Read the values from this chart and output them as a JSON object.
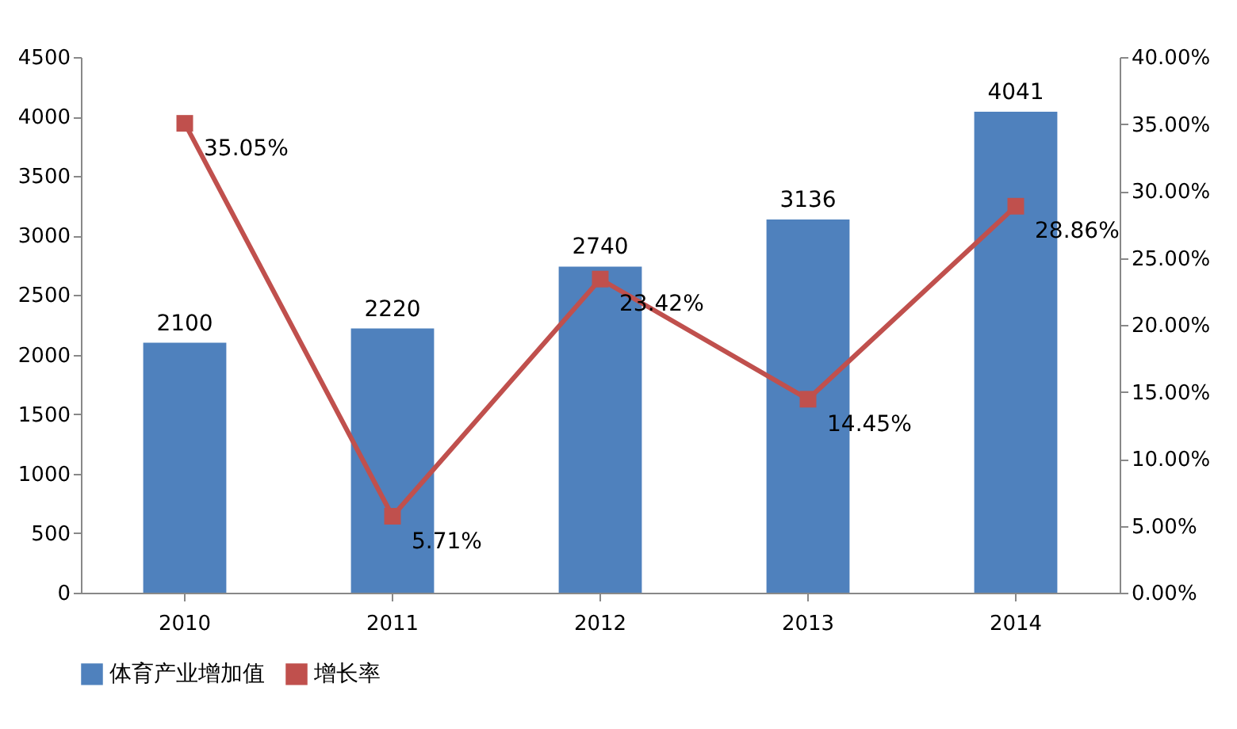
{
  "chart_data": {
    "type": "bar",
    "categories": [
      "2010",
      "2011",
      "2012",
      "2013",
      "2014"
    ],
    "series": [
      {
        "name": "体育产业增加值",
        "color": "#4f81bd",
        "values": [
          2100,
          2220,
          2740,
          3136,
          4041
        ],
        "value_labels": [
          "2100",
          "2220",
          "2740",
          "3136",
          "4041"
        ]
      },
      {
        "name": "增长率",
        "type": "line",
        "axis": "y2",
        "color": "#c0504d",
        "marker": "square",
        "values": [
          35.05,
          5.71,
          23.42,
          14.45,
          28.86
        ],
        "value_labels": [
          "35.05%",
          "5.71%",
          "23.42%",
          "14.45%",
          "28.86%"
        ]
      }
    ],
    "ylim": [
      0,
      4500
    ],
    "yticks": [
      0,
      500,
      1000,
      1500,
      2000,
      2500,
      3000,
      3500,
      4000,
      4500
    ],
    "y2lim": [
      0,
      40
    ],
    "y2ticks": [
      {
        "value": 0,
        "label": "0.00%"
      },
      {
        "value": 5,
        "label": "5.00%"
      },
      {
        "value": 10,
        "label": "10.00%"
      },
      {
        "value": 15,
        "label": "15.00%"
      },
      {
        "value": 20,
        "label": "20.00%"
      },
      {
        "value": 25,
        "label": "25.00%"
      },
      {
        "value": 30,
        "label": "30.00%"
      },
      {
        "value": 35,
        "label": "35.00%"
      },
      {
        "value": 40,
        "label": "40.00%"
      }
    ],
    "legend": "bottom"
  }
}
